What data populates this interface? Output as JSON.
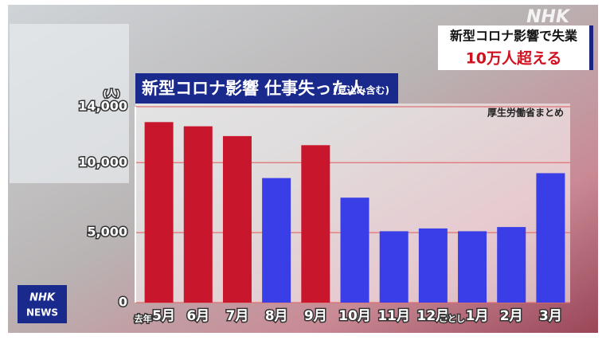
{
  "chart_data": {
    "type": "bar",
    "title": "新型コロナ影響 仕事失った人",
    "subtitle": "(見込み含む)",
    "y_unit": "(人)",
    "source": "厚生労働省まとめ",
    "headline": [
      "新型コロナ影響で失業",
      "10万人超える"
    ],
    "logo": "NHK",
    "news_logo": [
      "NHK",
      "NEWS"
    ],
    "categories": [
      "5月",
      "6月",
      "7月",
      "8月",
      "9月",
      "10月",
      "11月",
      "12月",
      "1月",
      "2月",
      "3月"
    ],
    "year_marks": [
      "去年",
      null,
      null,
      null,
      null,
      null,
      null,
      null,
      "ことし",
      null,
      null
    ],
    "values": [
      12900,
      12600,
      11900,
      8900,
      11250,
      7500,
      5100,
      5300,
      5100,
      5400,
      9250
    ],
    "colors": [
      "#c8172c",
      "#c8172c",
      "#c8172c",
      "#3a3ee6",
      "#c8172c",
      "#3a3ee6",
      "#3a3ee6",
      "#3a3ee6",
      "#3a3ee6",
      "#3a3ee6",
      "#3a3ee6"
    ],
    "ylim": [
      0,
      14000
    ],
    "yticks": [
      0,
      {
        "value": 5000,
        "label": "5,000"
      },
      {
        "value": 10000,
        "label": "10,000"
      },
      {
        "value": 14000,
        "label": "14,000"
      }
    ],
    "grid": true,
    "grid_color": "#e07070"
  }
}
